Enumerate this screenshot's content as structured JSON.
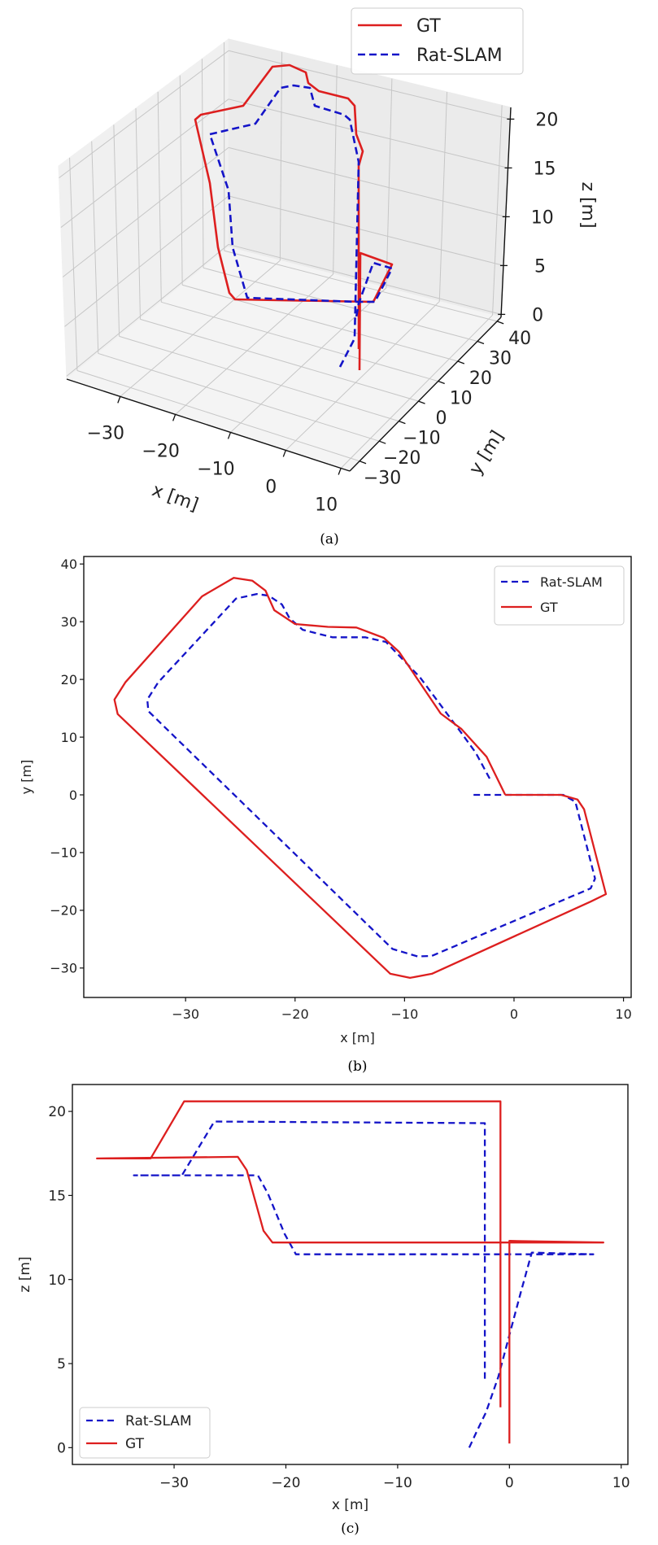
{
  "colors": {
    "gt": "#dd1f1f",
    "rat_slam": "#1414c8"
  },
  "chart_data": [
    {
      "type": "line3d",
      "caption": "(a)",
      "xlabel": "x [m]",
      "ylabel": "y [m]",
      "zlabel": "z [m]",
      "xlim": [
        -39.7,
        11.6
      ],
      "ylim": [
        -35,
        42
      ],
      "zlim": [
        -0.3,
        21.2
      ],
      "xticks": [
        -30,
        -20,
        -10,
        0,
        10
      ],
      "xtick_labels": [
        "−30",
        "−20",
        "−10",
        "0",
        "10"
      ],
      "yticks": [
        -30,
        -20,
        -10,
        0,
        10,
        20,
        30,
        40
      ],
      "ytick_labels": [
        "−30",
        "−20",
        "−10",
        "0",
        "10",
        "20",
        "30",
        "40"
      ],
      "zticks": [
        0,
        5,
        10,
        15,
        20
      ],
      "ztick_labels": [
        "0",
        "5",
        "10",
        "15",
        "20"
      ],
      "grid": true,
      "legend": {
        "position": "top-right",
        "entries": [
          "GT",
          "Rat-SLAM"
        ]
      },
      "series": [
        {
          "name": "GT",
          "style": "solid"
        },
        {
          "name": "Rat-SLAM",
          "style": "dashed"
        }
      ]
    },
    {
      "type": "line",
      "caption": "(b)",
      "xlabel": "x [m]",
      "ylabel": "y [m]",
      "xlim": [
        -39.3,
        10.7
      ],
      "ylim": [
        -35.1,
        41.3
      ],
      "xticks": [
        -30,
        -20,
        -10,
        0,
        10
      ],
      "xtick_labels": [
        "−30",
        "−20",
        "−10",
        "0",
        "10"
      ],
      "yticks": [
        -30,
        -20,
        -10,
        0,
        10,
        20,
        30,
        40
      ],
      "ytick_labels": [
        "−30",
        "−20",
        "−10",
        "0",
        "10",
        "20",
        "30",
        "40"
      ],
      "grid": false,
      "legend": {
        "position": "top-right",
        "entries": [
          "Rat-SLAM",
          "GT"
        ]
      },
      "series": [
        {
          "name": "Rat-SLAM",
          "style": "dashed",
          "points": [
            [
              -3.7,
              0
            ],
            [
              4.5,
              0
            ],
            [
              5.6,
              -1.2
            ],
            [
              7.4,
              -14.5
            ],
            [
              7,
              -16.2
            ],
            [
              -7.5,
              -27.9
            ],
            [
              -8.8,
              -28
            ],
            [
              -11.1,
              -26.7
            ],
            [
              -33.4,
              14.5
            ],
            [
              -33.5,
              16.5
            ],
            [
              -32.5,
              19.5
            ],
            [
              -25.4,
              34
            ],
            [
              -23.5,
              34.8
            ],
            [
              -22.4,
              34.5
            ],
            [
              -21.2,
              33
            ],
            [
              -20.5,
              30.6
            ],
            [
              -19.3,
              28.6
            ],
            [
              -16.6,
              27.3
            ],
            [
              -13.6,
              27.3
            ],
            [
              -11.7,
              26.5
            ],
            [
              -8.6,
              20.4
            ],
            [
              -4.8,
              10.7
            ],
            [
              -3.5,
              7.3
            ],
            [
              -2.1,
              2.4
            ]
          ]
        },
        {
          "name": "GT",
          "style": "solid",
          "points": [
            [
              -0.8,
              0
            ],
            [
              4.3,
              0
            ],
            [
              5.8,
              -0.8
            ],
            [
              6.4,
              -2.5
            ],
            [
              8.4,
              -17.2
            ],
            [
              7.0,
              -18.5
            ],
            [
              -7.5,
              -31.0
            ],
            [
              -9.5,
              -31.7
            ],
            [
              -11.3,
              -31.0
            ],
            [
              -36.2,
              14.0
            ],
            [
              -36.5,
              16.5
            ],
            [
              -35.5,
              19.5
            ],
            [
              -28.5,
              34.4
            ],
            [
              -25.6,
              37.6
            ],
            [
              -23.9,
              37.1
            ],
            [
              -22.7,
              35.4
            ],
            [
              -21.9,
              32
            ],
            [
              -20.0,
              29.6
            ],
            [
              -17,
              29.1
            ],
            [
              -14.4,
              29
            ],
            [
              -11.9,
              27.2
            ],
            [
              -10.5,
              24.8
            ],
            [
              -6.7,
              14.1
            ],
            [
              -4.8,
              11.4
            ],
            [
              -2.5,
              6.6
            ],
            [
              -0.8,
              0
            ]
          ]
        }
      ]
    },
    {
      "type": "line",
      "caption": "(c)",
      "xlabel": "x [m]",
      "ylabel": "z [m]",
      "xlim": [
        -39.1,
        10.6
      ],
      "ylim": [
        -1.0,
        21.6
      ],
      "xticks": [
        -30,
        -20,
        -10,
        0,
        10
      ],
      "xtick_labels": [
        "−30",
        "−20",
        "−10",
        "0",
        "10"
      ],
      "yticks": [
        0,
        5,
        10,
        15,
        20
      ],
      "ytick_labels": [
        "0",
        "5",
        "10",
        "15",
        "20"
      ],
      "grid": false,
      "legend": {
        "position": "lower-left",
        "entries": [
          "Rat-SLAM",
          "GT"
        ]
      },
      "series": [
        {
          "name": "Rat-SLAM",
          "style": "dashed",
          "points": [
            [
              -3.6,
              0
            ],
            [
              -2.9,
              1
            ],
            [
              -2.1,
              2.1
            ],
            [
              -1,
              4.2
            ],
            [
              0,
              6.7
            ],
            [
              1,
              9.2
            ],
            [
              2.0,
              11.6
            ],
            [
              7.5,
              11.5
            ],
            [
              -19.1,
              11.5
            ],
            [
              -20.1,
              12.7
            ],
            [
              -21.6,
              15.1
            ],
            [
              -22.5,
              16.2
            ],
            [
              -33.6,
              16.2
            ],
            [
              -29.3,
              16.2
            ],
            [
              -26.4,
              19.4
            ],
            [
              -2.2,
              19.3
            ],
            [
              -2.2,
              3.9
            ]
          ]
        },
        {
          "name": "GT",
          "style": "solid",
          "points": [
            [
              0,
              0.25
            ],
            [
              0,
              12.3
            ],
            [
              8.4,
              12.2
            ],
            [
              -21.2,
              12.2
            ],
            [
              -22,
              12.9
            ],
            [
              -23.5,
              16.5
            ],
            [
              -24.3,
              17.3
            ],
            [
              -36.9,
              17.2
            ],
            [
              -32.1,
              17.2
            ],
            [
              -29.1,
              20.6
            ],
            [
              -0.8,
              20.6
            ],
            [
              -0.8,
              2.4
            ]
          ]
        }
      ]
    }
  ]
}
